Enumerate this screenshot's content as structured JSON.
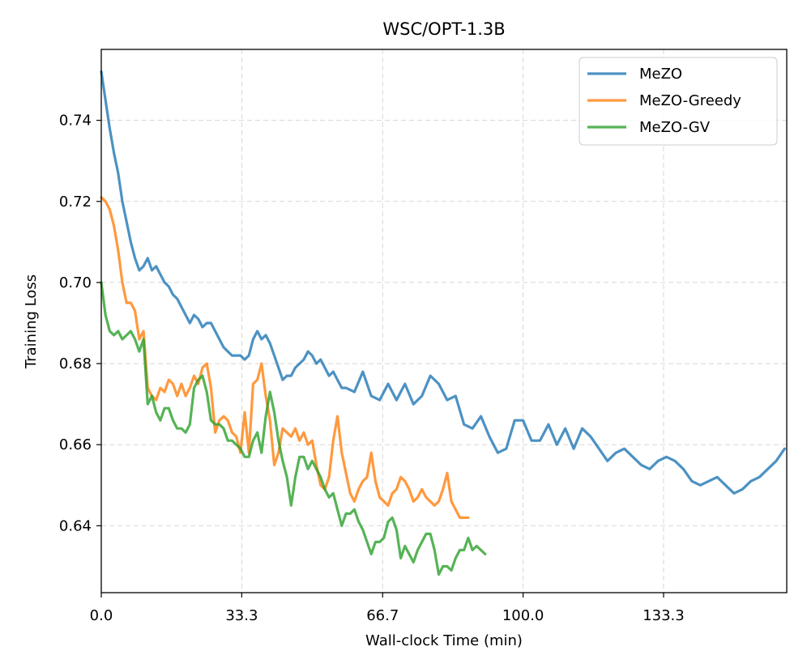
{
  "chart_data": {
    "type": "line",
    "title": "WSC/OPT-1.3B",
    "xlabel": "Wall-clock Time (min)",
    "ylabel": "Training Loss",
    "xlim": [
      0,
      162.5
    ],
    "ylim": [
      0.6235,
      0.7575
    ],
    "xticks": [
      0,
      33.3,
      66.7,
      100,
      133.3
    ],
    "xtick_labels": [
      "0.0",
      "33.3",
      "66.7",
      "100.0",
      "133.3"
    ],
    "yticks": [
      0.64,
      0.66,
      0.68,
      0.7,
      0.72,
      0.74
    ],
    "ytick_labels": [
      "0.64",
      "0.66",
      "0.68",
      "0.70",
      "0.72",
      "0.74"
    ],
    "grid": true,
    "legend_position": "top-right",
    "series": [
      {
        "name": "MeZO",
        "color": "#1f77b4",
        "x": [
          0,
          1,
          2,
          3,
          4,
          5,
          6,
          7,
          8,
          9,
          10,
          11,
          12,
          13,
          14,
          15,
          16,
          17,
          18,
          19,
          20,
          21,
          22,
          23,
          24,
          25,
          26,
          27,
          28,
          29,
          30,
          31,
          32,
          33,
          34,
          35,
          36,
          37,
          38,
          39,
          40,
          41,
          42,
          43,
          44,
          45,
          46,
          47,
          48,
          49,
          50,
          51,
          52,
          53,
          54,
          55,
          56,
          57,
          58,
          60,
          62,
          64,
          66,
          68,
          70,
          72,
          74,
          76,
          78,
          80,
          82,
          84,
          86,
          88,
          90,
          92,
          94,
          96,
          98,
          100,
          102,
          104,
          106,
          108,
          110,
          112,
          114,
          116,
          118,
          120,
          122,
          124,
          126,
          128,
          130,
          132,
          134,
          136,
          138,
          140,
          142,
          144,
          146,
          148,
          150,
          152,
          154,
          156,
          158,
          160,
          162
        ],
        "values": [
          0.752,
          0.745,
          0.738,
          0.732,
          0.727,
          0.72,
          0.715,
          0.71,
          0.706,
          0.703,
          0.704,
          0.706,
          0.703,
          0.704,
          0.702,
          0.7,
          0.699,
          0.697,
          0.696,
          0.694,
          0.692,
          0.69,
          0.692,
          0.691,
          0.689,
          0.69,
          0.69,
          0.688,
          0.686,
          0.684,
          0.683,
          0.682,
          0.682,
          0.682,
          0.681,
          0.682,
          0.686,
          0.688,
          0.686,
          0.687,
          0.685,
          0.682,
          0.679,
          0.676,
          0.677,
          0.677,
          0.679,
          0.68,
          0.681,
          0.683,
          0.682,
          0.68,
          0.681,
          0.679,
          0.677,
          0.678,
          0.676,
          0.674,
          0.674,
          0.673,
          0.678,
          0.672,
          0.671,
          0.675,
          0.671,
          0.675,
          0.67,
          0.672,
          0.677,
          0.675,
          0.671,
          0.672,
          0.665,
          0.664,
          0.667,
          0.662,
          0.658,
          0.659,
          0.666,
          0.666,
          0.661,
          0.661,
          0.665,
          0.66,
          0.664,
          0.659,
          0.664,
          0.662,
          0.659,
          0.656,
          0.658,
          0.659,
          0.657,
          0.655,
          0.654,
          0.656,
          0.657,
          0.656,
          0.654,
          0.651,
          0.65,
          0.651,
          0.652,
          0.65,
          0.648,
          0.649,
          0.651,
          0.652,
          0.654,
          0.656,
          0.659
        ]
      },
      {
        "name": "MeZO-Greedy",
        "color": "#ff7f0e",
        "x": [
          0,
          1,
          2,
          3,
          4,
          5,
          6,
          7,
          8,
          9,
          10,
          11,
          12,
          13,
          14,
          15,
          16,
          17,
          18,
          19,
          20,
          21,
          22,
          23,
          24,
          25,
          26,
          27,
          28,
          29,
          30,
          31,
          32,
          33,
          34,
          35,
          36,
          37,
          38,
          39,
          40,
          41,
          42,
          43,
          44,
          45,
          46,
          47,
          48,
          49,
          50,
          51,
          52,
          53,
          54,
          55,
          56,
          57,
          58,
          59,
          60,
          61,
          62,
          63,
          64,
          65,
          66,
          67,
          68,
          69,
          70,
          71,
          72,
          73,
          74,
          75,
          76,
          77,
          78,
          79,
          80,
          81,
          82,
          83,
          84,
          85,
          86,
          87
        ],
        "values": [
          0.721,
          0.72,
          0.718,
          0.714,
          0.708,
          0.7,
          0.695,
          0.695,
          0.693,
          0.686,
          0.688,
          0.674,
          0.672,
          0.671,
          0.674,
          0.673,
          0.676,
          0.675,
          0.672,
          0.675,
          0.672,
          0.674,
          0.677,
          0.675,
          0.679,
          0.68,
          0.674,
          0.663,
          0.666,
          0.667,
          0.666,
          0.663,
          0.662,
          0.658,
          0.668,
          0.658,
          0.675,
          0.676,
          0.68,
          0.672,
          0.666,
          0.655,
          0.658,
          0.664,
          0.663,
          0.662,
          0.664,
          0.661,
          0.663,
          0.66,
          0.661,
          0.655,
          0.65,
          0.649,
          0.652,
          0.661,
          0.667,
          0.658,
          0.653,
          0.648,
          0.646,
          0.649,
          0.651,
          0.652,
          0.658,
          0.651,
          0.647,
          0.646,
          0.645,
          0.648,
          0.649,
          0.652,
          0.651,
          0.649,
          0.646,
          0.647,
          0.649,
          0.647,
          0.646,
          0.645,
          0.646,
          0.649,
          0.653,
          0.646,
          0.644,
          0.642,
          0.642,
          0.642
        ]
      },
      {
        "name": "MeZO-GV",
        "color": "#2ca02c",
        "x": [
          0,
          1,
          2,
          3,
          4,
          5,
          6,
          7,
          8,
          9,
          10,
          11,
          12,
          13,
          14,
          15,
          16,
          17,
          18,
          19,
          20,
          21,
          22,
          23,
          24,
          25,
          26,
          27,
          28,
          29,
          30,
          31,
          32,
          33,
          34,
          35,
          36,
          37,
          38,
          39,
          40,
          41,
          42,
          43,
          44,
          45,
          46,
          47,
          48,
          49,
          50,
          51,
          52,
          53,
          54,
          55,
          56,
          57,
          58,
          59,
          60,
          61,
          62,
          63,
          64,
          65,
          66,
          67,
          68,
          69,
          70,
          71,
          72,
          73,
          74,
          75,
          76,
          77,
          78,
          79,
          80,
          81,
          82,
          83,
          84,
          85,
          86,
          87,
          88,
          89,
          90,
          91
        ],
        "values": [
          0.7,
          0.692,
          0.688,
          0.687,
          0.688,
          0.686,
          0.687,
          0.688,
          0.686,
          0.683,
          0.686,
          0.67,
          0.672,
          0.668,
          0.666,
          0.669,
          0.669,
          0.666,
          0.664,
          0.664,
          0.663,
          0.665,
          0.674,
          0.676,
          0.677,
          0.673,
          0.666,
          0.665,
          0.665,
          0.664,
          0.661,
          0.661,
          0.66,
          0.659,
          0.657,
          0.657,
          0.661,
          0.663,
          0.658,
          0.667,
          0.673,
          0.668,
          0.661,
          0.656,
          0.652,
          0.645,
          0.652,
          0.657,
          0.657,
          0.654,
          0.656,
          0.654,
          0.652,
          0.649,
          0.647,
          0.648,
          0.644,
          0.64,
          0.643,
          0.643,
          0.644,
          0.641,
          0.639,
          0.636,
          0.633,
          0.636,
          0.636,
          0.637,
          0.641,
          0.642,
          0.639,
          0.632,
          0.635,
          0.633,
          0.631,
          0.634,
          0.636,
          0.638,
          0.638,
          0.634,
          0.628,
          0.63,
          0.63,
          0.629,
          0.632,
          0.634,
          0.634,
          0.637,
          0.634,
          0.635,
          0.634,
          0.633
        ]
      }
    ]
  }
}
